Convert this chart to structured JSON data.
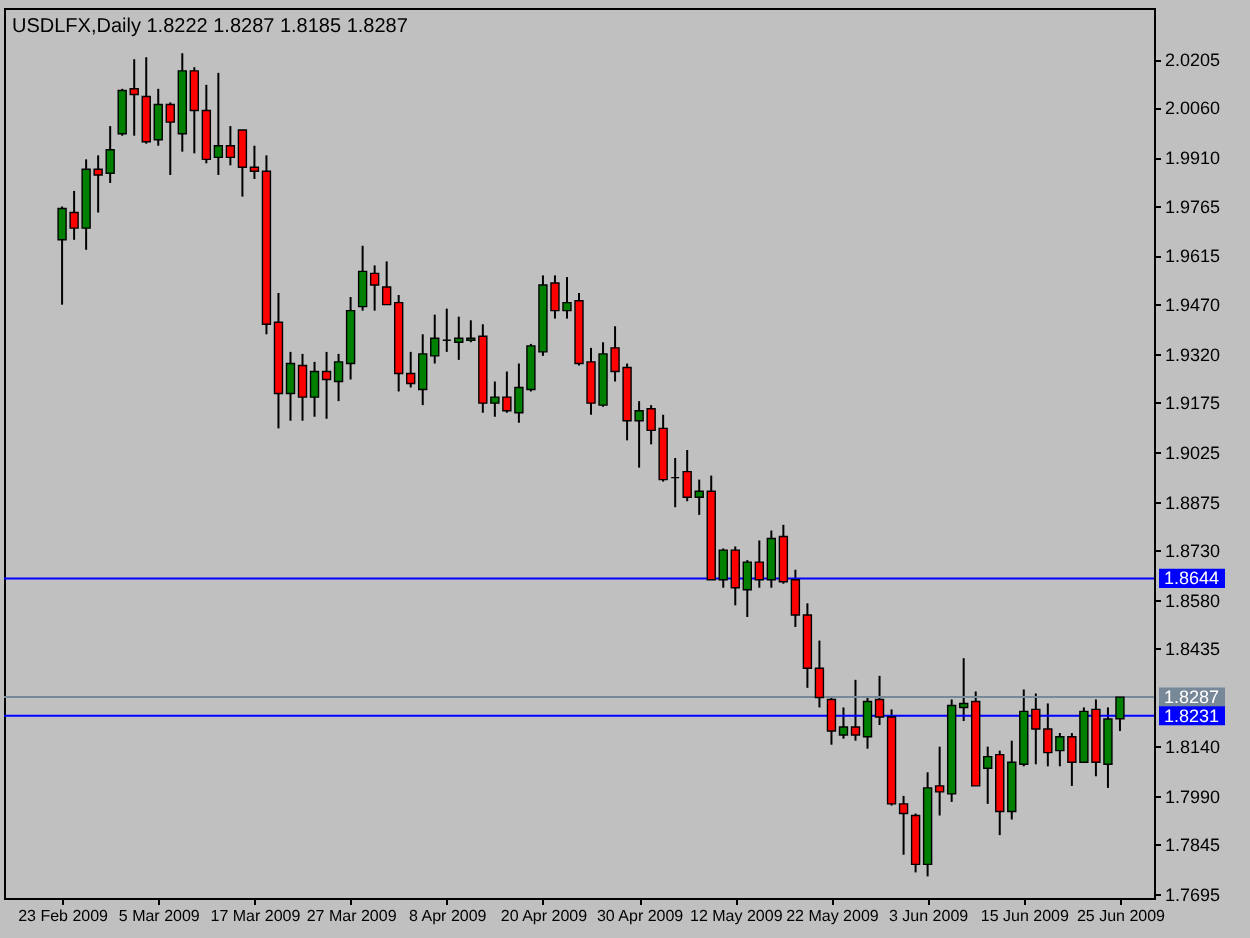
{
  "chart_data": {
    "type": "candlestick",
    "title": "USDLFX,Daily 1.8222 1.8287 1.8185 1.8287",
    "categories": [
      "23 Feb 2009",
      null,
      null,
      null,
      null,
      null,
      null,
      null,
      "5 Mar 2009",
      null,
      null,
      null,
      null,
      null,
      null,
      null,
      "17 Mar 2009",
      null,
      null,
      null,
      null,
      null,
      null,
      null,
      "27 Mar 2009",
      null,
      null,
      null,
      null,
      null,
      null,
      null,
      "8 Apr 2009",
      null,
      null,
      null,
      null,
      null,
      null,
      null,
      "20 Apr 2009",
      null,
      null,
      null,
      null,
      null,
      null,
      null,
      "30 Apr 2009",
      null,
      null,
      null,
      null,
      null,
      null,
      null,
      "12 May 2009",
      null,
      null,
      null,
      null,
      null,
      null,
      null,
      "22 May 2009",
      null,
      null,
      null,
      null,
      null,
      null,
      null,
      "3 Jun 2009",
      null,
      null,
      null,
      null,
      null,
      null,
      null,
      "15 Jun 2009",
      null,
      null,
      null,
      null,
      null,
      null,
      null,
      "25 Jun 2009"
    ],
    "ohlc": [
      [
        1.9662,
        1.9762,
        1.9467,
        1.9756
      ],
      [
        1.9744,
        1.9809,
        1.9662,
        1.9697
      ],
      [
        1.9697,
        1.9904,
        1.9632,
        1.9874
      ],
      [
        1.9874,
        1.9916,
        1.9744,
        1.9857
      ],
      [
        1.9862,
        2.0004,
        1.9833,
        1.9933
      ],
      [
        1.9981,
        2.0116,
        1.9975,
        2.0111
      ],
      [
        2.0116,
        2.0205,
        1.9975,
        2.0099
      ],
      [
        2.0093,
        2.0211,
        1.9951,
        1.9957
      ],
      [
        1.9963,
        2.0116,
        1.9945,
        2.0069
      ],
      [
        2.0069,
        2.0075,
        1.9857,
        2.0016
      ],
      [
        1.9981,
        2.0223,
        1.9927,
        2.017
      ],
      [
        2.017,
        2.0181,
        1.9922,
        2.0051
      ],
      [
        2.0051,
        2.0128,
        1.9892,
        1.9904
      ],
      [
        1.991,
        2.0164,
        1.9857,
        1.9945
      ],
      [
        1.9945,
        2.0004,
        1.9886,
        1.991
      ],
      [
        1.9992,
        1.9992,
        1.9792,
        1.988
      ],
      [
        1.988,
        1.9945,
        1.9845,
        1.9868
      ],
      [
        1.9868,
        1.9916,
        1.9378,
        1.9408
      ],
      [
        1.9414,
        1.9502,
        1.9095,
        1.92
      ],
      [
        1.92,
        1.9325,
        1.9118,
        1.929
      ],
      [
        1.9284,
        1.9319,
        1.9118,
        1.9189
      ],
      [
        1.9189,
        1.9295,
        1.913,
        1.9266
      ],
      [
        1.9266,
        1.9325,
        1.9124,
        1.9242
      ],
      [
        1.9236,
        1.9319,
        1.9177,
        1.9295
      ],
      [
        1.929,
        1.949,
        1.9242,
        1.9449
      ],
      [
        1.9461,
        1.9644,
        1.9449,
        1.9567
      ],
      [
        1.9561,
        1.9585,
        1.9449,
        1.9526
      ],
      [
        1.952,
        1.9597,
        1.9467,
        1.9467
      ],
      [
        1.9473,
        1.9496,
        1.9206,
        1.926
      ],
      [
        1.926,
        1.9325,
        1.9218,
        1.923
      ],
      [
        1.9212,
        1.9378,
        1.9165,
        1.9319
      ],
      [
        1.9313,
        1.9437,
        1.929,
        1.9366
      ],
      [
        1.936,
        1.9455,
        1.9325,
        1.936
      ],
      [
        1.9354,
        1.9431,
        1.9301,
        1.9366
      ],
      [
        1.936,
        1.942,
        1.9354,
        1.9366
      ],
      [
        1.9372,
        1.9408,
        1.9142,
        1.9171
      ],
      [
        1.9171,
        1.9236,
        1.913,
        1.9189
      ],
      [
        1.9189,
        1.9266,
        1.9142,
        1.9148
      ],
      [
        1.9142,
        1.929,
        1.9112,
        1.9218
      ],
      [
        1.9212,
        1.9349,
        1.9206,
        1.9343
      ],
      [
        1.9325,
        1.9555,
        1.9313,
        1.9526
      ],
      [
        1.9532,
        1.9555,
        1.9425,
        1.9449
      ],
      [
        1.9449,
        1.955,
        1.9425,
        1.9473
      ],
      [
        1.9479,
        1.9502,
        1.9284,
        1.929
      ],
      [
        1.9295,
        1.9337,
        1.9136,
        1.9171
      ],
      [
        1.9165,
        1.9354,
        1.916,
        1.9319
      ],
      [
        1.9337,
        1.9402,
        1.9236,
        1.9266
      ],
      [
        1.9278,
        1.929,
        1.9059,
        1.9118
      ],
      [
        1.9118,
        1.9177,
        1.8977,
        1.9148
      ],
      [
        1.9154,
        1.9165,
        1.9047,
        1.9089
      ],
      [
        1.9095,
        1.9136,
        1.8935,
        1.8941
      ],
      [
        1.8947,
        1.9006,
        1.8858,
        1.8947
      ],
      [
        1.8965,
        1.903,
        1.8876,
        1.8888
      ],
      [
        1.8888,
        1.8941,
        1.8835,
        1.8906
      ],
      [
        1.8906,
        1.8953,
        1.864,
        1.864
      ],
      [
        1.864,
        1.8734,
        1.8616,
        1.8729
      ],
      [
        1.8729,
        1.874,
        1.8563,
        1.8616
      ],
      [
        1.861,
        1.8699,
        1.8528,
        1.8693
      ],
      [
        1.8693,
        1.8758,
        1.8616,
        1.864
      ],
      [
        1.864,
        1.8788,
        1.8616,
        1.8764
      ],
      [
        1.877,
        1.8805,
        1.8628,
        1.8634
      ],
      [
        1.864,
        1.867,
        1.8498,
        1.8534
      ],
      [
        1.8534,
        1.8569,
        1.8315,
        1.8374
      ],
      [
        1.8374,
        1.8457,
        1.8256,
        1.8286
      ],
      [
        1.828,
        1.8286,
        1.8144,
        1.8185
      ],
      [
        1.8173,
        1.8256,
        1.8162,
        1.8197
      ],
      [
        1.8197,
        1.8339,
        1.8156,
        1.8173
      ],
      [
        1.8168,
        1.8286,
        1.8132,
        1.8274
      ],
      [
        1.828,
        1.8351,
        1.8203,
        1.8227
      ],
      [
        1.8227,
        1.825,
        1.7961,
        1.7966
      ],
      [
        1.7966,
        1.799,
        1.7813,
        1.7937
      ],
      [
        1.7931,
        1.7937,
        1.776,
        1.7784
      ],
      [
        1.7784,
        1.8061,
        1.7748,
        1.8014
      ],
      [
        1.802,
        1.8138,
        1.7931,
        1.8002
      ],
      [
        1.7996,
        1.828,
        1.7972,
        1.8262
      ],
      [
        1.8256,
        1.8404,
        1.8215,
        1.8268
      ],
      [
        1.8274,
        1.8304,
        1.802,
        1.802
      ],
      [
        1.8073,
        1.8138,
        1.7966,
        1.8108
      ],
      [
        1.8114,
        1.8126,
        1.7872,
        1.7943
      ],
      [
        1.7943,
        1.8156,
        1.7919,
        1.8091
      ],
      [
        1.8085,
        1.831,
        1.8079,
        1.8244
      ],
      [
        1.825,
        1.8298,
        1.8085,
        1.8191
      ],
      [
        1.8191,
        1.8268,
        1.8079,
        1.812
      ],
      [
        1.8126,
        1.8179,
        1.8079,
        1.8168
      ],
      [
        1.8168,
        1.8179,
        1.802,
        1.8091
      ],
      [
        1.8091,
        1.8256,
        1.8091,
        1.8244
      ],
      [
        1.825,
        1.828,
        1.8049,
        1.8091
      ],
      [
        1.8085,
        1.8256,
        1.8014,
        1.8221
      ],
      [
        1.8222,
        1.8287,
        1.8185,
        1.8287
      ]
    ],
    "colors": [
      "#008000",
      "#ff0000",
      "#008000",
      "#ff0000",
      "#008000",
      "#008000",
      "#ff0000",
      "#ff0000",
      "#008000",
      "#ff0000",
      "#008000",
      "#ff0000",
      "#ff0000",
      "#008000",
      "#ff0000",
      "#ff0000",
      "#ff0000",
      "#ff0000",
      "#ff0000",
      "#008000",
      "#ff0000",
      "#008000",
      "#ff0000",
      "#008000",
      "#008000",
      "#008000",
      "#ff0000",
      "#ff0000",
      "#ff0000",
      "#ff0000",
      "#008000",
      "#008000",
      "#000000",
      "#008000",
      "#008000",
      "#ff0000",
      "#008000",
      "#ff0000",
      "#008000",
      "#008000",
      "#008000",
      "#ff0000",
      "#008000",
      "#ff0000",
      "#ff0000",
      "#008000",
      "#ff0000",
      "#ff0000",
      "#008000",
      "#ff0000",
      "#ff0000",
      "#000000",
      "#ff0000",
      "#008000",
      "#ff0000",
      "#008000",
      "#ff0000",
      "#008000",
      "#ff0000",
      "#008000",
      "#ff0000",
      "#ff0000",
      "#ff0000",
      "#ff0000",
      "#ff0000",
      "#008000",
      "#ff0000",
      "#008000",
      "#ff0000",
      "#ff0000",
      "#ff0000",
      "#ff0000",
      "#008000",
      "#ff0000",
      "#008000",
      "#008000",
      "#ff0000",
      "#008000",
      "#ff0000",
      "#008000",
      "#008000",
      "#ff0000",
      "#ff0000",
      "#008000",
      "#ff0000",
      "#008000",
      "#ff0000",
      "#008000",
      "#008000"
    ],
    "ylim": [
      1.7683,
      2.0359
    ],
    "yticks": [
      2.0205,
      {
        "value": 2.006,
        "label": "2.0060"
      },
      {
        "value": 1.991,
        "label": "1.9910"
      },
      1.9765,
      1.9615,
      {
        "value": 1.947,
        "label": "1.9470"
      },
      {
        "value": 1.932,
        "label": "1.9320"
      },
      1.9175,
      1.9025,
      1.8875,
      {
        "value": 1.873,
        "label": "1.8730"
      },
      {
        "value": 1.858,
        "label": "1.8580"
      },
      1.8435,
      {
        "value": 1.814,
        "label": "1.8140"
      },
      {
        "value": 1.799,
        "label": "1.7990"
      },
      1.7845,
      1.7695
    ],
    "ref_lines": [
      {
        "axis": "y",
        "value": 1.8644,
        "label": "1.8644",
        "color": "#0000ff"
      },
      {
        "axis": "y",
        "value": 1.8287,
        "label": "1.8287",
        "color": "#778899"
      },
      {
        "axis": "y",
        "value": 1.8231,
        "label": "1.8231",
        "color": "#0000ff"
      }
    ]
  }
}
